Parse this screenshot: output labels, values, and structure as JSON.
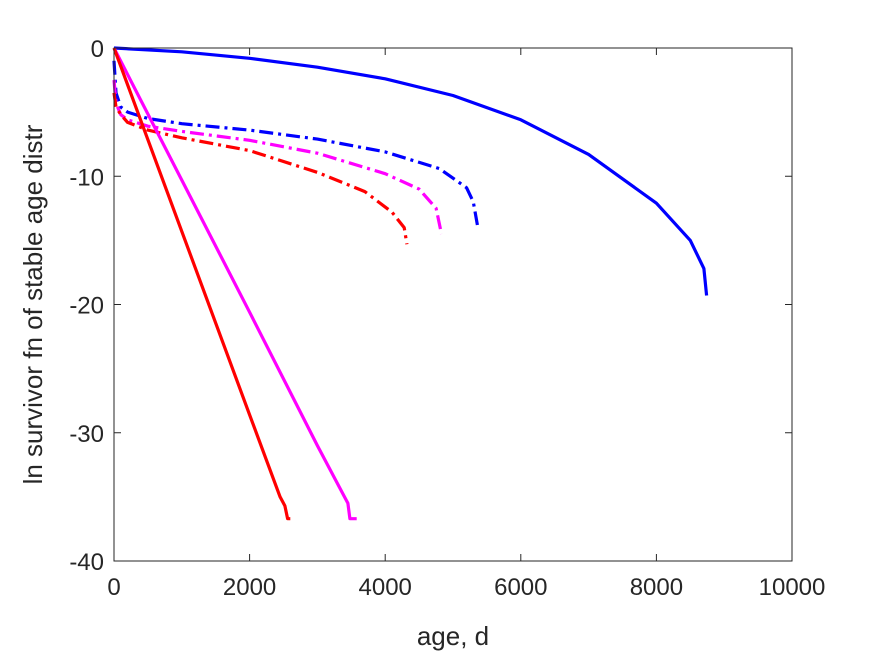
{
  "chart_data": {
    "type": "line",
    "title": "",
    "xlabel": "age, d",
    "ylabel": "ln survivor fn of stable age distr",
    "xlim": [
      0,
      10000
    ],
    "ylim": [
      -40,
      0
    ],
    "xticks": [
      0,
      2000,
      4000,
      6000,
      8000,
      10000
    ],
    "yticks": [
      -40,
      -30,
      -20,
      -10,
      0
    ],
    "xtick_labels": [
      "0",
      "2000",
      "4000",
      "6000",
      "8000",
      "10000"
    ],
    "ytick_labels": [
      "-40",
      "-30",
      "-20",
      "-10",
      "0"
    ],
    "grid": false,
    "legend": "none",
    "series": [
      {
        "color": "#0000ff",
        "style": "solid",
        "x": [
          0,
          1000,
          2000,
          3000,
          4000,
          5000,
          6000,
          7000,
          8000,
          8500,
          8700,
          8740
        ],
        "y": [
          0,
          -0.3,
          -0.8,
          -1.5,
          -2.4,
          -3.7,
          -5.6,
          -8.3,
          -12.1,
          -15.0,
          -17.2,
          -19.3
        ]
      },
      {
        "color": "#0000ff",
        "style": "dashdot",
        "x": [
          0,
          30,
          100,
          200,
          500,
          1000,
          2000,
          3000,
          4000,
          4800,
          5200,
          5300,
          5360
        ],
        "y": [
          -1.0,
          -3.5,
          -4.6,
          -5.0,
          -5.5,
          -5.9,
          -6.4,
          -7.1,
          -8.1,
          -9.4,
          -10.9,
          -12.0,
          -13.8
        ]
      },
      {
        "color": "#ff00ff",
        "style": "dashdot",
        "x": [
          0,
          30,
          100,
          200,
          500,
          1000,
          2000,
          3000,
          4000,
          4500,
          4750,
          4830
        ],
        "y": [
          -2.5,
          -4.3,
          -5.2,
          -5.6,
          -6.1,
          -6.5,
          -7.2,
          -8.2,
          -9.8,
          -11.0,
          -12.5,
          -14.5
        ]
      },
      {
        "color": "#ff0000",
        "style": "dashdot",
        "x": [
          0,
          30,
          100,
          200,
          500,
          1000,
          2000,
          3000,
          3700,
          4100,
          4280,
          4320
        ],
        "y": [
          -3.5,
          -4.6,
          -5.2,
          -5.8,
          -6.4,
          -7.0,
          -8.0,
          -9.7,
          -11.2,
          -12.8,
          -14.0,
          -15.3
        ]
      },
      {
        "color": "#ff00ff",
        "style": "solid",
        "x": [
          0,
          1000,
          2000,
          3000,
          3400,
          3450,
          3480,
          3520,
          3580
        ],
        "y": [
          0,
          -10.3,
          -20.6,
          -31.0,
          -35.0,
          -35.5,
          -36.7,
          -36.7,
          -36.7
        ]
      },
      {
        "color": "#ff0000",
        "style": "solid",
        "x": [
          0,
          1000,
          2000,
          2450,
          2520,
          2560,
          2600
        ],
        "y": [
          0,
          -14.3,
          -28.6,
          -35.0,
          -35.7,
          -36.7,
          -36.7
        ]
      }
    ]
  }
}
